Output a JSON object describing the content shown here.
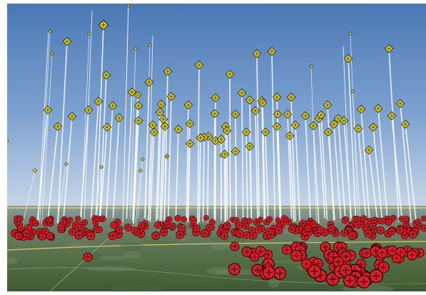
{
  "view": {
    "type": "3d-globe-perspective",
    "sky_colors": [
      "#4a78b4",
      "#7ea2d0",
      "#c7d6e6"
    ],
    "ground_colors": [
      "#8d9ea0",
      "#6f7f6a",
      "#566f48",
      "#3f5a32"
    ],
    "horizon_line_color": "#e6e04a",
    "road_color": "#e8e26a"
  },
  "markers": {
    "elevated": {
      "symbol": "yellow-diamond-crosshair",
      "fill": "#e8dc2a",
      "stroke": "#1a1a00",
      "tether_color": "#ffffff"
    },
    "ground": {
      "symbol": "red-circle-crosshair",
      "fill": "#d8202a",
      "stroke": "#3a0000"
    }
  }
}
